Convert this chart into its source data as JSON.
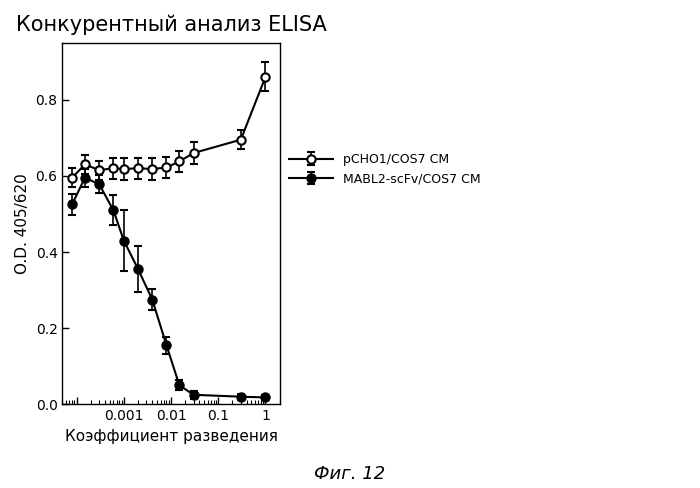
{
  "title": "Конкурентный анализ ELISA",
  "xlabel": "Коэффициент разведения",
  "ylabel": "O.D. 405/620",
  "caption": "Фиг. 12",
  "ylim": [
    0,
    0.95
  ],
  "yticks": [
    0,
    0.2,
    0.4,
    0.6,
    0.8
  ],
  "series1_label": "pCHO1/COS7 CM",
  "series1_x": [
    8e-05,
    0.00015,
    0.0003,
    0.0006,
    0.001,
    0.002,
    0.004,
    0.008,
    0.015,
    0.03,
    0.3,
    1.0
  ],
  "series1_y": [
    0.595,
    0.63,
    0.615,
    0.62,
    0.618,
    0.62,
    0.618,
    0.622,
    0.638,
    0.66,
    0.695,
    0.86
  ],
  "series1_yerr": [
    0.025,
    0.025,
    0.025,
    0.028,
    0.028,
    0.028,
    0.028,
    0.028,
    0.028,
    0.028,
    0.025,
    0.038
  ],
  "series2_label": "MABL2-scFv/COS7 CM",
  "series2_x": [
    8e-05,
    0.00015,
    0.0003,
    0.0006,
    0.001,
    0.002,
    0.004,
    0.008,
    0.015,
    0.03,
    0.3,
    1.0
  ],
  "series2_y": [
    0.525,
    0.595,
    0.578,
    0.51,
    0.43,
    0.355,
    0.275,
    0.155,
    0.05,
    0.025,
    0.02,
    0.018
  ],
  "series2_yerr": [
    0.028,
    0.023,
    0.023,
    0.04,
    0.08,
    0.06,
    0.028,
    0.023,
    0.013,
    0.01,
    0.008,
    0.006
  ],
  "line_color": "#000000",
  "bg_color": "#ffffff",
  "legend_fontsize": 9,
  "title_fontsize": 15,
  "axis_fontsize": 11,
  "caption_fontsize": 13,
  "xlim": [
    5e-05,
    2.0
  ]
}
